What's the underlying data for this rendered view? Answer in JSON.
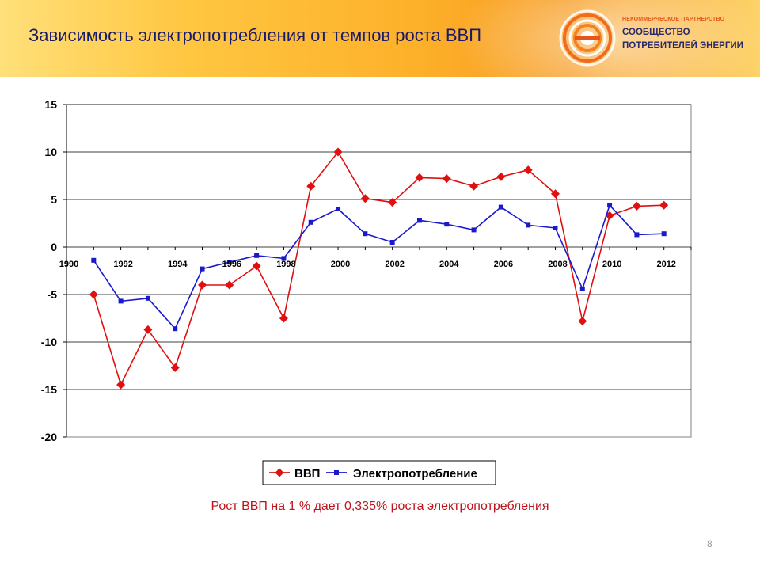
{
  "slide": {
    "title": "Зависимость электропотребления от  темпов  роста ВВП",
    "caption": "Рост ВВП на 1 % дает 0,335% роста электропотребления",
    "page_number": "8"
  },
  "logo": {
    "org_small": "НЕКОММЕРЧЕСКОЕ ПАРТНЕРСТВО",
    "org_line1": "СООБЩЕСТВО",
    "org_line2": "ПОТРЕБИТЕЛЕЙ ЭНЕРГИИ",
    "icon": "energy-ring-logo-icon"
  },
  "colors": {
    "gdp": "#e01010",
    "power": "#1a1acc",
    "title": "#1a1a6a",
    "caption": "#c0141c"
  },
  "chart_data": {
    "type": "line",
    "title": "",
    "xlabel": "",
    "ylabel": "",
    "x": [
      1990,
      1991,
      1992,
      1993,
      1994,
      1995,
      1996,
      1997,
      1998,
      1999,
      2000,
      2001,
      2002,
      2003,
      2004,
      2005,
      2006,
      2007,
      2008,
      2009,
      2010,
      2011,
      2012
    ],
    "x_tick_labels": [
      "1990",
      "1992",
      "1994",
      "1996",
      "1998",
      "2000",
      "2002",
      "2004",
      "2006",
      "2008",
      "2010",
      "2012"
    ],
    "x_tick_values": [
      1990,
      1992,
      1994,
      1996,
      1998,
      2000,
      2002,
      2004,
      2006,
      2008,
      2010,
      2012
    ],
    "ylim": [
      -20,
      15
    ],
    "y_ticks": [
      "15",
      "10",
      "5",
      "0",
      "-5",
      "-10",
      "-15",
      "-20"
    ],
    "y_tick_values": [
      15,
      10,
      5,
      0,
      -5,
      -10,
      -15,
      -20
    ],
    "grid": "horizontal",
    "legend_position": "bottom",
    "series": [
      {
        "name": "ВВП",
        "color": "#e01010",
        "marker": "diamond",
        "x": [
          1991,
          1992,
          1993,
          1994,
          1995,
          1996,
          1997,
          1998,
          1999,
          2000,
          2001,
          2002,
          2003,
          2004,
          2005,
          2006,
          2007,
          2008,
          2009,
          2010,
          2011,
          2012
        ],
        "values": [
          -5.0,
          -14.5,
          -8.7,
          -12.7,
          -4.0,
          -4.0,
          -2.0,
          -7.5,
          6.4,
          10.0,
          5.1,
          4.7,
          7.3,
          7.2,
          6.4,
          7.4,
          8.1,
          5.6,
          -7.8,
          3.3,
          4.3,
          4.4
        ]
      },
      {
        "name": "Электропотребление",
        "color": "#1a1acc",
        "marker": "square",
        "x": [
          1991,
          1992,
          1993,
          1994,
          1995,
          1996,
          1997,
          1998,
          1999,
          2000,
          2001,
          2002,
          2003,
          2004,
          2005,
          2006,
          2007,
          2008,
          2009,
          2010,
          2011,
          2012
        ],
        "values": [
          -1.4,
          -5.7,
          -5.4,
          -8.6,
          -2.3,
          -1.6,
          -0.9,
          -1.2,
          2.6,
          4.0,
          1.4,
          0.5,
          2.8,
          2.4,
          1.8,
          4.2,
          2.3,
          2.0,
          -4.4,
          4.4,
          1.3,
          1.4
        ]
      }
    ]
  }
}
